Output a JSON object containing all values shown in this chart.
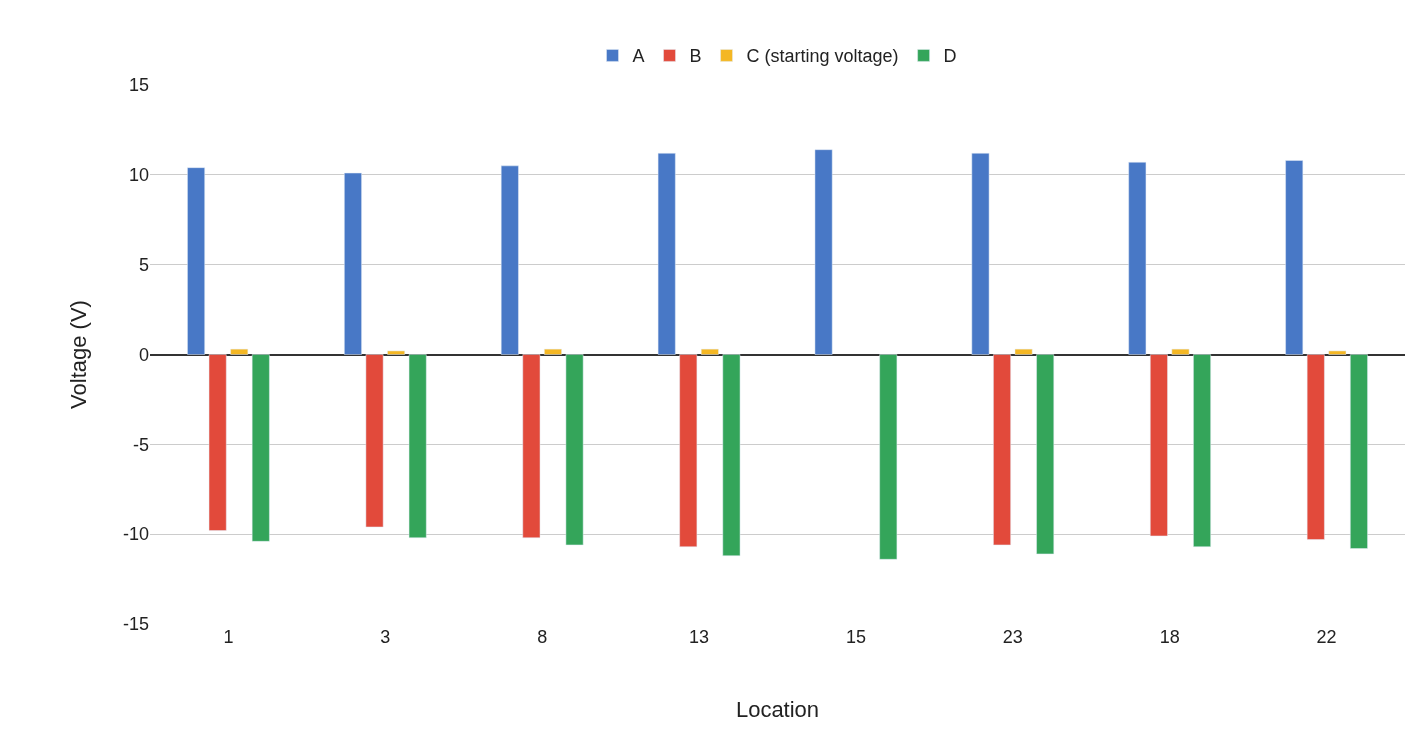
{
  "chart_data": {
    "type": "bar",
    "xlabel": "Location",
    "ylabel": "Voltage (V)",
    "categories": [
      "1",
      "3",
      "8",
      "13",
      "15",
      "23",
      "18",
      "22"
    ],
    "series": [
      {
        "name": "A",
        "color": "#4878c6",
        "values": [
          10.4,
          10.1,
          10.5,
          11.2,
          11.4,
          11.2,
          10.7,
          10.8
        ]
      },
      {
        "name": "B",
        "color": "#e24a3b",
        "values": [
          -9.8,
          -9.6,
          -10.2,
          -10.7,
          null,
          -10.6,
          -10.1,
          -10.3
        ]
      },
      {
        "name": "C (starting voltage)",
        "color": "#f4b724",
        "values": [
          0.3,
          0.2,
          0.3,
          0.3,
          null,
          0.3,
          0.3,
          0.2
        ]
      },
      {
        "name": "D",
        "color": "#34a55a",
        "values": [
          -10.4,
          -10.2,
          -10.6,
          -11.2,
          -11.4,
          -11.1,
          -10.7,
          -10.8
        ]
      }
    ],
    "ylim": [
      -15,
      15
    ],
    "yticks": [
      -15,
      -10,
      -5,
      0,
      5,
      10,
      15
    ],
    "grid": "y",
    "legend": "top"
  }
}
